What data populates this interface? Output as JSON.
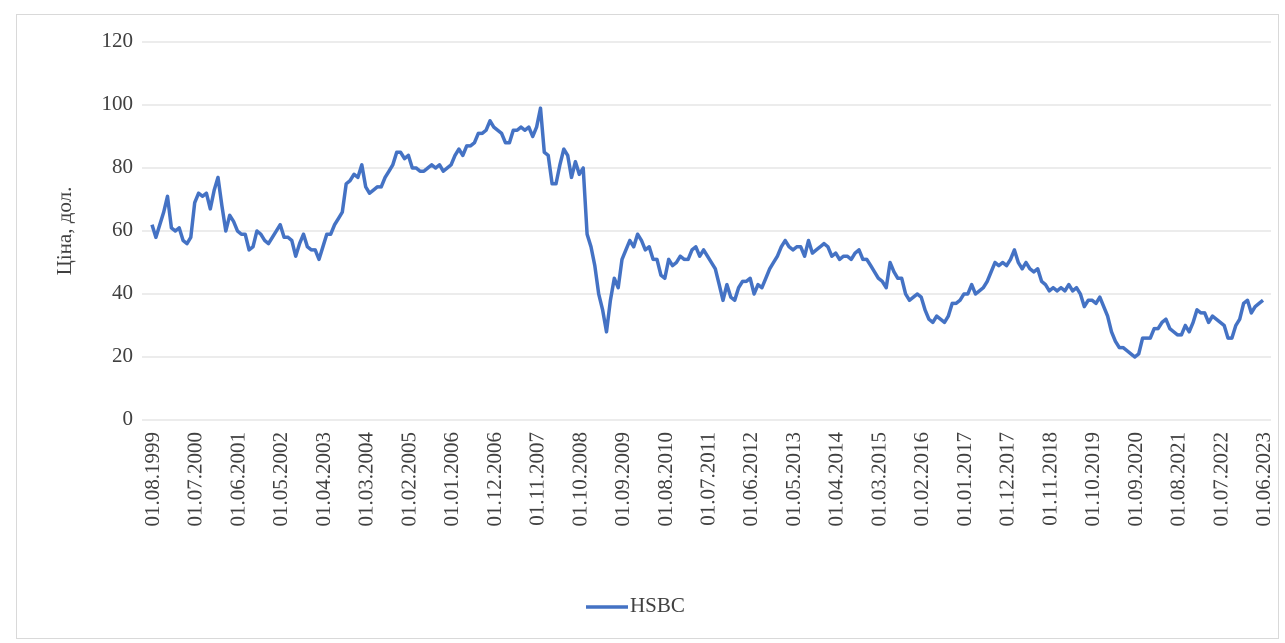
{
  "chart_data": {
    "type": "line",
    "y_label": "Ціна, дол.",
    "categories": [
      "01.08.1999",
      null,
      null,
      null,
      null,
      null,
      null,
      null,
      null,
      null,
      null,
      "01.07.2000",
      null,
      null,
      null,
      null,
      null,
      null,
      null,
      null,
      null,
      null,
      "01.06.2001",
      null,
      null,
      null,
      null,
      null,
      null,
      null,
      null,
      null,
      null,
      "01.05.2002",
      null,
      null,
      null,
      null,
      null,
      null,
      null,
      null,
      null,
      null,
      "01.04.2003",
      null,
      null,
      null,
      null,
      null,
      null,
      null,
      null,
      null,
      null,
      "01.03.2004",
      null,
      null,
      null,
      null,
      null,
      null,
      null,
      null,
      null,
      null,
      "01.02.2005",
      null,
      null,
      null,
      null,
      null,
      null,
      null,
      null,
      null,
      null,
      "01.01.2006",
      null,
      null,
      null,
      null,
      null,
      null,
      null,
      null,
      null,
      null,
      "01.12.2006",
      null,
      null,
      null,
      null,
      null,
      null,
      null,
      null,
      null,
      null,
      "01.11.2007",
      null,
      null,
      null,
      null,
      null,
      null,
      null,
      null,
      null,
      null,
      "01.10.2008",
      null,
      null,
      null,
      null,
      null,
      null,
      null,
      null,
      null,
      null,
      "01.09.2009",
      null,
      null,
      null,
      null,
      null,
      null,
      null,
      null,
      null,
      null,
      "01.08.2010",
      null,
      null,
      null,
      null,
      null,
      null,
      null,
      null,
      null,
      null,
      "01.07.2011",
      null,
      null,
      null,
      null,
      null,
      null,
      null,
      null,
      null,
      null,
      "01.06.2012",
      null,
      null,
      null,
      null,
      null,
      null,
      null,
      null,
      null,
      null,
      "01.05.2013",
      null,
      null,
      null,
      null,
      null,
      null,
      null,
      null,
      null,
      null,
      "01.04.2014",
      null,
      null,
      null,
      null,
      null,
      null,
      null,
      null,
      null,
      null,
      "01.03.2015",
      null,
      null,
      null,
      null,
      null,
      null,
      null,
      null,
      null,
      null,
      "01.02.2016",
      null,
      null,
      null,
      null,
      null,
      null,
      null,
      null,
      null,
      null,
      "01.01.2017",
      null,
      null,
      null,
      null,
      null,
      null,
      null,
      null,
      null,
      null,
      "01.12.2017",
      null,
      null,
      null,
      null,
      null,
      null,
      null,
      null,
      null,
      null,
      "01.11.2018",
      null,
      null,
      null,
      null,
      null,
      null,
      null,
      null,
      null,
      null,
      "01.10.2019",
      null,
      null,
      null,
      null,
      null,
      null,
      null,
      null,
      null,
      null,
      "01.09.2020",
      null,
      null,
      null,
      null,
      null,
      null,
      null,
      null,
      null,
      null,
      "01.08.2021",
      null,
      null,
      null,
      null,
      null,
      null,
      null,
      null,
      null,
      null,
      "01.07.2022",
      null,
      null,
      null,
      null,
      null,
      null,
      null,
      null,
      null,
      null,
      "01.06.2023"
    ],
    "series": [
      {
        "name": "HSBC",
        "color": "#4472c4",
        "values": [
          62,
          58,
          62,
          66,
          71,
          61,
          60,
          61,
          57,
          56,
          58,
          69,
          72,
          71,
          72,
          67,
          73,
          77,
          68,
          60,
          65,
          63,
          60,
          59,
          59,
          54,
          55,
          60,
          59,
          57,
          56,
          58,
          60,
          62,
          58,
          58,
          57,
          52,
          56,
          59,
          55,
          54,
          54,
          51,
          55,
          59,
          59,
          62,
          64,
          66,
          75,
          76,
          78,
          77,
          81,
          74,
          72,
          73,
          74,
          74,
          77,
          79,
          81,
          85,
          85,
          83,
          84,
          80,
          80,
          79,
          79,
          80,
          81,
          80,
          81,
          79,
          80,
          81,
          84,
          86,
          84,
          87,
          87,
          88,
          91,
          91,
          92,
          95,
          93,
          92,
          91,
          88,
          88,
          92,
          92,
          93,
          92,
          93,
          90,
          93,
          99,
          85,
          84,
          75,
          75,
          81,
          86,
          84,
          77,
          82,
          78,
          80,
          59,
          55,
          49,
          40,
          35,
          28,
          38,
          45,
          42,
          51,
          54,
          57,
          55,
          59,
          57,
          54,
          55,
          51,
          51,
          46,
          45,
          51,
          49,
          50,
          52,
          51,
          51,
          54,
          55,
          52,
          54,
          52,
          50,
          48,
          43,
          38,
          43,
          39,
          38,
          42,
          44,
          44,
          45,
          40,
          43,
          42,
          45,
          48,
          50,
          52,
          55,
          57,
          55,
          54,
          55,
          55,
          52,
          57,
          53,
          54,
          55,
          56,
          55,
          52,
          53,
          51,
          52,
          52,
          51,
          53,
          54,
          51,
          51,
          49,
          47,
          45,
          44,
          42,
          50,
          47,
          45,
          45,
          40,
          38,
          39,
          40,
          39,
          35,
          32,
          31,
          33,
          32,
          31,
          33,
          37,
          37,
          38,
          40,
          40,
          43,
          40,
          41,
          42,
          44,
          47,
          50,
          49,
          50,
          49,
          51,
          54,
          50,
          48,
          50,
          48,
          47,
          48,
          44,
          43,
          41,
          42,
          41,
          42,
          41,
          43,
          41,
          42,
          40,
          36,
          38,
          38,
          37,
          39,
          36,
          33,
          28,
          25,
          23,
          23,
          22,
          21,
          20,
          21,
          26,
          26,
          26,
          29,
          29,
          31,
          32,
          29,
          28,
          27,
          27,
          30,
          28,
          31,
          35,
          34,
          34,
          31,
          33,
          32,
          31,
          30,
          26,
          26,
          30,
          32,
          37,
          38,
          34,
          36,
          37,
          38
        ]
      }
    ],
    "ylim": [
      0,
      120
    ],
    "yticks": [
      0,
      20,
      40,
      60,
      80,
      100,
      120
    ],
    "grid": true,
    "legend": "bottom"
  }
}
